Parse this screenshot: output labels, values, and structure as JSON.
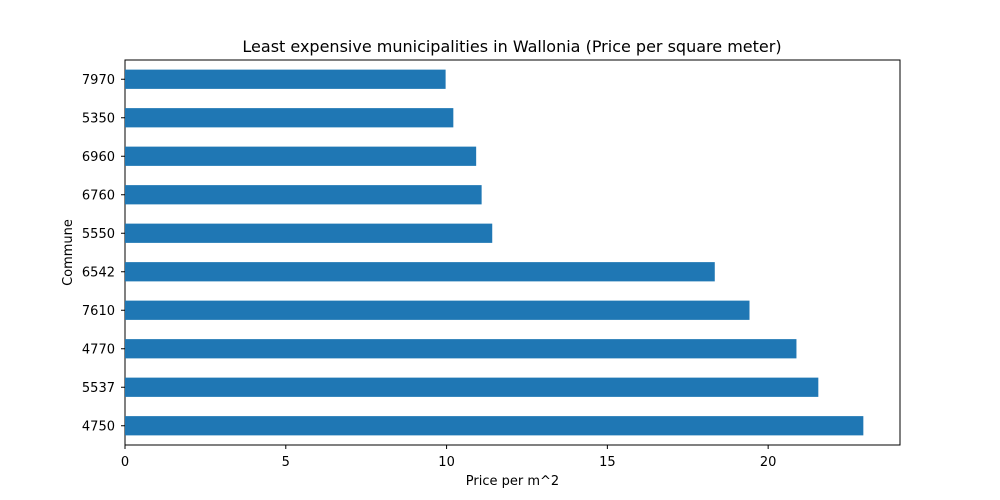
{
  "chart_data": {
    "type": "bar",
    "orientation": "horizontal",
    "title": "Least expensive municipalities in Wallonia (Price per square meter)",
    "xlabel": "Price per m^2",
    "ylabel": "Commune",
    "xlim": [
      0,
      24.1
    ],
    "xticks": [
      0,
      5,
      10,
      15,
      20
    ],
    "categories": [
      "4750",
      "5537",
      "4770",
      "7610",
      "6542",
      "5550",
      "6760",
      "6960",
      "5350",
      "7970"
    ],
    "values": [
      22.96,
      21.56,
      20.88,
      19.42,
      18.34,
      11.42,
      11.09,
      10.92,
      10.21,
      9.97
    ],
    "bar_color": "#1f77b4",
    "grid": false,
    "legend": false
  }
}
